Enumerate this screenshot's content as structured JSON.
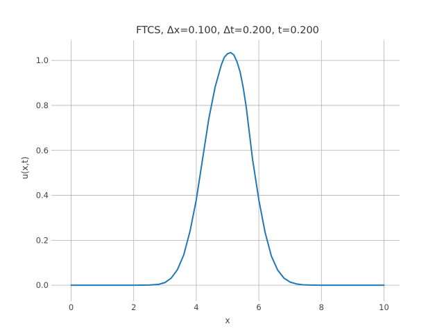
{
  "chart_data": {
    "type": "line",
    "title": "FTCS, Δx=0.100, Δt=0.200, t=0.200",
    "xlabel": "x",
    "ylabel": "u(x,t)",
    "xlim": [
      -0.5,
      10.5
    ],
    "ylim": [
      -0.052,
      1.09
    ],
    "grid": true,
    "x_ticks": [
      0,
      2,
      4,
      6,
      8,
      10
    ],
    "y_ticks": [
      0.0,
      0.2,
      0.4,
      0.6,
      0.8,
      1.0
    ],
    "x_tick_labels": [
      "0",
      "2",
      "4",
      "6",
      "8",
      "10"
    ],
    "y_tick_labels": [
      "0.0",
      "0.2",
      "0.4",
      "0.6",
      "0.8",
      "1.0"
    ],
    "series": [
      {
        "color": "#1f77b4",
        "x": [
          0,
          1,
          2,
          2.5,
          2.8,
          3.0,
          3.2,
          3.4,
          3.6,
          3.8,
          4.0,
          4.2,
          4.4,
          4.6,
          4.8,
          4.9,
          5.0,
          5.1,
          5.2,
          5.3,
          5.4,
          5.5,
          5.6,
          5.8,
          6.0,
          6.2,
          6.4,
          6.6,
          6.8,
          7.0,
          7.2,
          7.4,
          7.6,
          8.0,
          8.5,
          9.0,
          10.0
        ],
        "y": [
          0,
          0,
          0,
          0.001,
          0.004,
          0.012,
          0.032,
          0.07,
          0.135,
          0.24,
          0.38,
          0.56,
          0.74,
          0.88,
          0.98,
          1.015,
          1.03,
          1.035,
          1.025,
          0.995,
          0.95,
          0.88,
          0.79,
          0.56,
          0.38,
          0.235,
          0.13,
          0.068,
          0.032,
          0.014,
          0.006,
          0.002,
          0.001,
          0,
          0,
          0,
          0
        ]
      }
    ]
  }
}
